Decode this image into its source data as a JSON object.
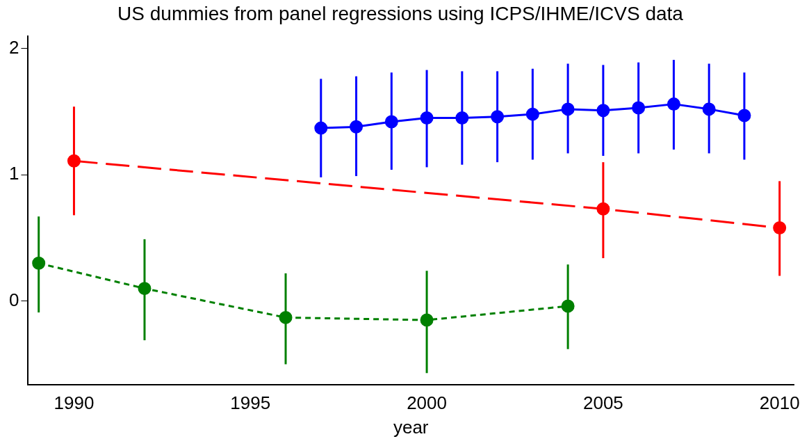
{
  "chart_data": {
    "type": "line",
    "title": "US dummies from panel regressions using ICPS/IHME/ICVS data",
    "xlabel": "year",
    "xlim": [
      1988.7,
      2010.4
    ],
    "xticks": [
      1990,
      1995,
      2000,
      2005,
      2010
    ],
    "ylim": [
      -0.66,
      2.1
    ],
    "yticks": [
      0,
      1,
      2
    ],
    "grid": false,
    "legend": false,
    "marker": "circle",
    "series": [
      {
        "color": "#0000ff",
        "line_style": "solid",
        "x": [
          1997,
          1998,
          1999,
          2000,
          2001,
          2002,
          2003,
          2004,
          2005,
          2006,
          2007,
          2008,
          2009
        ],
        "values": [
          1.37,
          1.38,
          1.42,
          1.45,
          1.45,
          1.46,
          1.48,
          1.52,
          1.51,
          1.53,
          1.56,
          1.52,
          1.47
        ],
        "errors": [
          [
            0.98,
            1.76
          ],
          [
            0.99,
            1.78
          ],
          [
            1.04,
            1.81
          ],
          [
            1.06,
            1.83
          ],
          [
            1.08,
            1.82
          ],
          [
            1.1,
            1.82
          ],
          [
            1.12,
            1.84
          ],
          [
            1.17,
            1.88
          ],
          [
            1.15,
            1.87
          ],
          [
            1.17,
            1.89
          ],
          [
            1.2,
            1.91
          ],
          [
            1.17,
            1.88
          ],
          [
            1.12,
            1.81
          ]
        ]
      },
      {
        "color": "#ff0000",
        "line_style": "dashed",
        "x": [
          1990,
          2005,
          2010
        ],
        "values": [
          1.11,
          0.73,
          0.58
        ],
        "errors": [
          [
            0.68,
            1.54
          ],
          [
            0.34,
            1.1
          ],
          [
            0.2,
            0.95
          ]
        ]
      },
      {
        "color": "#008000",
        "line_style": "dotted",
        "x": [
          1989,
          1992,
          1996,
          2000,
          2004
        ],
        "values": [
          0.3,
          0.1,
          -0.13,
          -0.15,
          -0.04
        ],
        "errors": [
          [
            -0.09,
            0.67
          ],
          [
            -0.31,
            0.49
          ],
          [
            -0.5,
            0.22
          ],
          [
            -0.57,
            0.24
          ],
          [
            -0.38,
            0.29
          ]
        ]
      }
    ]
  }
}
